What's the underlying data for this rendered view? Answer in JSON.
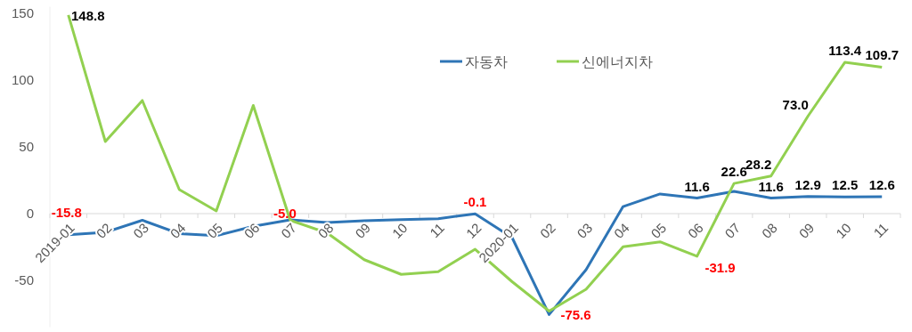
{
  "chart_data": {
    "type": "line",
    "categories": [
      "2019-01",
      "02",
      "03",
      "04",
      "05",
      "06",
      "07",
      "08",
      "09",
      "10",
      "11",
      "12",
      "2020-01",
      "02",
      "03",
      "04",
      "05",
      "06",
      "07",
      "08",
      "09",
      "10",
      "11"
    ],
    "series": [
      {
        "name": "자동차",
        "color": "#2e75b6",
        "values": [
          -15.8,
          -14,
          -5,
          -15,
          -16.5,
          -9.5,
          -4.7,
          -6.7,
          -5.3,
          -4.5,
          -3.8,
          -0.1,
          -18,
          -75.6,
          -42,
          5.3,
          14.7,
          11.6,
          16.7,
          11.6,
          12.9,
          12.5,
          12.6
        ],
        "value_labels": [
          "-15.8",
          null,
          null,
          null,
          null,
          null,
          null,
          null,
          null,
          null,
          null,
          "-0.1",
          null,
          "-75.6",
          null,
          null,
          null,
          "11.6",
          null,
          "11.6",
          "12.9",
          "12.5",
          "12.6"
        ]
      },
      {
        "name": "신에너지차",
        "color": "#92d050",
        "values": [
          148.8,
          54,
          84.7,
          18,
          2,
          81,
          -5.0,
          -14.5,
          -34.5,
          -45.5,
          -43.5,
          -26.7,
          -51,
          -73,
          -56.7,
          -24.9,
          -21.1,
          -31.9,
          22.6,
          28.2,
          73.0,
          113.4,
          109.7
        ],
        "value_labels": [
          "148.8",
          null,
          null,
          null,
          null,
          null,
          "-5.0",
          null,
          null,
          null,
          null,
          null,
          null,
          null,
          null,
          null,
          null,
          "-31.9",
          "22.6",
          "28.2",
          "73.0",
          "113.4",
          "109.7"
        ]
      }
    ],
    "ylim": [
      -85,
      155
    ],
    "yticks": [
      -50,
      0,
      50,
      100,
      150
    ],
    "grid": false,
    "legend": "top",
    "marker": "none",
    "line_style": "solid"
  }
}
